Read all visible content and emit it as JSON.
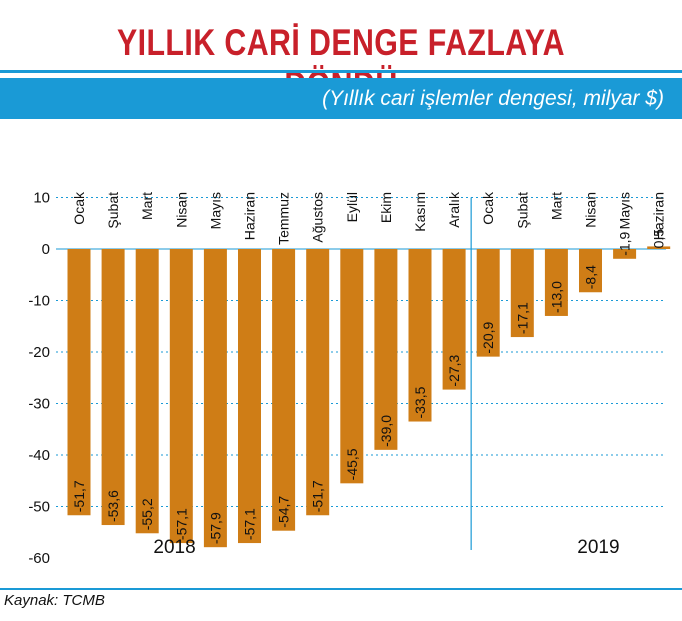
{
  "header": {
    "title": "YILLIK CARİ DENGE FAZLAYA DÖNDÜ",
    "subtitle": "(Yıllık cari işlemler dengesi, milyar $)"
  },
  "footer": {
    "source": "Kaynak: TCMB"
  },
  "colors": {
    "bar": "#cf7d16",
    "accent": "#1a9ad6",
    "title": "#c8202a"
  },
  "chart_data": {
    "type": "bar",
    "categories": [
      "Ocak",
      "Şubat",
      "Mart",
      "Nisan",
      "Mayıs",
      "Haziran",
      "Temmuz",
      "Ağustos",
      "Eylül",
      "Ekim",
      "Kasım",
      "Aralık",
      "Ocak",
      "Şubat",
      "Mart",
      "Nisan",
      "Mayıs",
      "Haziran"
    ],
    "values": [
      -51.7,
      -53.6,
      -55.2,
      -57.1,
      -57.9,
      -57.1,
      -54.7,
      -51.7,
      -45.5,
      -39.0,
      -33.5,
      -27.3,
      -20.9,
      -17.1,
      -13.0,
      -8.4,
      -1.9,
      0.5
    ],
    "value_labels": [
      "-51,7",
      "-53,6",
      "-55,2",
      "-57,1",
      "-57,9",
      "-57,1",
      "-54,7",
      "-51,7",
      "-45,5",
      "-39,0",
      "-33,5",
      "-27,3",
      "-20,9",
      "-17,1",
      "-13,0",
      "-8,4",
      "-1,9",
      "0,5"
    ],
    "year_groups": [
      {
        "label": "2018",
        "count": 12
      },
      {
        "label": "2019",
        "count": 6
      }
    ],
    "yticks": [
      10,
      0,
      -10,
      -20,
      -30,
      -40,
      -50,
      -60
    ],
    "ylim": [
      -60,
      10
    ],
    "grid": true
  }
}
